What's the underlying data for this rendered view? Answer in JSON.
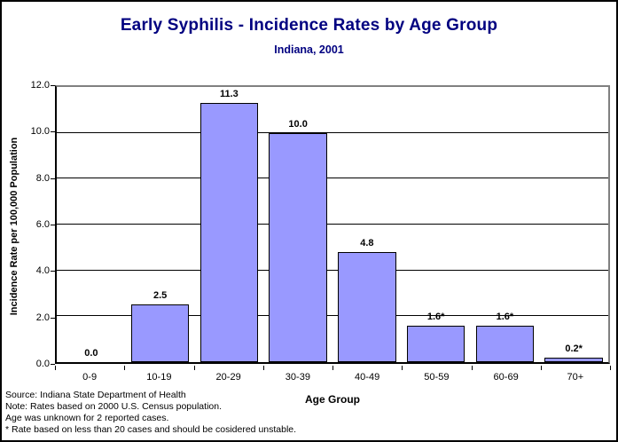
{
  "chart_data": {
    "type": "bar",
    "title": "Early Syphilis - Incidence Rates by Age Group",
    "subtitle": "Indiana, 2001",
    "categories": [
      "0-9",
      "10-19",
      "20-29",
      "30-39",
      "40-49",
      "50-59",
      "60-69",
      "70+"
    ],
    "values": [
      0.0,
      2.5,
      11.3,
      10.0,
      4.8,
      1.6,
      1.6,
      0.2
    ],
    "bar_labels": [
      "0.0",
      "2.5",
      "11.3",
      "10.0",
      "4.8",
      "1.6*",
      "1.6*",
      "0.2*"
    ],
    "xlabel": "Age Group",
    "ylabel": "Incidence Rate per 100,000 Population",
    "ylim": [
      0,
      12
    ],
    "ytick_step": 2,
    "ytick_labels": [
      "0.0",
      "2.0",
      "4.0",
      "6.0",
      "8.0",
      "10.0",
      "12.0"
    ],
    "grid": true,
    "legend": false
  },
  "footnotes": [
    "Source: Indiana State Department of Health",
    "Note: Rates based on 2000 U.S. Census population.",
    "Age was unknown for 2 reported cases.",
    "* Rate based on less than 20 cases and should be cosidered unstable."
  ],
  "colors": {
    "title": "#000080",
    "subtitle": "#000080",
    "bar_fill": "#9999FF",
    "bar_border": "#000000",
    "plot_border": "#808080",
    "axis": "#000000",
    "gridline": "#000000"
  }
}
